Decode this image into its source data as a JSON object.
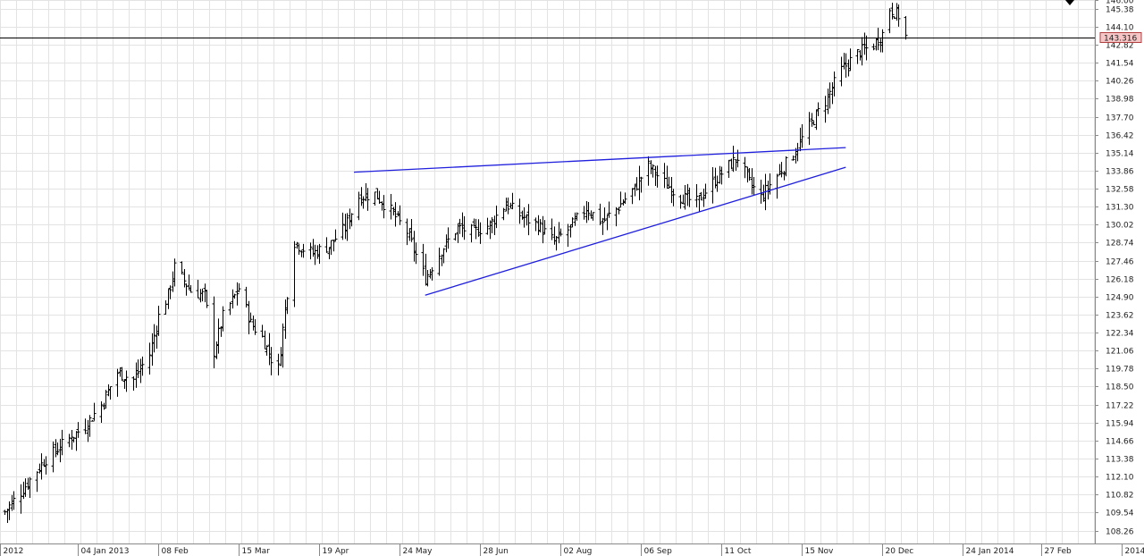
{
  "chart_data": {
    "type": "ohlc",
    "title": "",
    "xlabel": "",
    "ylabel": "",
    "grid": true,
    "ylim": [
      107.34,
      146.0
    ],
    "colors": {
      "bars": "#000000",
      "trendlines": "#1f1fdd",
      "grid": "#e3e3e3",
      "current_price_line": "#000000",
      "current_price_badge": "#f6c6c6"
    },
    "y_ticks": [
      "146.00",
      "145.38",
      "144.10",
      "142.82",
      "141.54",
      "140.26",
      "138.98",
      "137.70",
      "136.42",
      "135.14",
      "133.86",
      "132.58",
      "131.30",
      "130.02",
      "128.74",
      "127.46",
      "126.18",
      "124.90",
      "123.62",
      "122.34",
      "121.06",
      "119.78",
      "118.50",
      "117.22",
      "115.94",
      "114.66",
      "113.38",
      "112.10",
      "110.82",
      "109.54",
      "108.26"
    ],
    "x_ticks": [
      {
        "label": "2012",
        "date": "2012-12-01"
      },
      {
        "label": "04 Jan 2013",
        "date": "2013-01-04"
      },
      {
        "label": "08 Feb",
        "date": "2013-02-08"
      },
      {
        "label": "15 Mar",
        "date": "2013-03-15"
      },
      {
        "label": "19 Apr",
        "date": "2013-04-19"
      },
      {
        "label": "24 May",
        "date": "2013-05-24"
      },
      {
        "label": "28 Jun",
        "date": "2013-06-28"
      },
      {
        "label": "02 Aug",
        "date": "2013-08-02"
      },
      {
        "label": "06 Sep",
        "date": "2013-09-06"
      },
      {
        "label": "11 Oct",
        "date": "2013-10-11"
      },
      {
        "label": "15 Nov",
        "date": "2013-11-15"
      },
      {
        "label": "20 Dec",
        "date": "2013-12-20"
      },
      {
        "label": "24 Jan 2014",
        "date": "2014-01-24"
      },
      {
        "label": "27 Feb",
        "date": "2014-02-27"
      },
      {
        "label": "2014",
        "date": "2014-04-03"
      }
    ],
    "last_price": "143.316",
    "last_price_value": 143.316,
    "trendlines": [
      {
        "name": "upper",
        "start": {
          "date": "2013-05-04",
          "price": 133.75
        },
        "end": {
          "date": "2013-12-04",
          "price": 135.5
        }
      },
      {
        "name": "lower",
        "start": {
          "date": "2013-06-04",
          "price": 125.0
        },
        "end": {
          "date": "2013-12-04",
          "price": 134.1
        }
      }
    ],
    "anchors": [
      {
        "date": "2012-12-03",
        "price": 109.6
      },
      {
        "date": "2012-12-10",
        "price": 111.0
      },
      {
        "date": "2012-12-20",
        "price": 113.2
      },
      {
        "date": "2012-12-31",
        "price": 114.8
      },
      {
        "date": "2013-01-07",
        "price": 115.7
      },
      {
        "date": "2013-01-14",
        "price": 117.2
      },
      {
        "date": "2013-01-21",
        "price": 119.5
      },
      {
        "date": "2013-01-28",
        "price": 119.0
      },
      {
        "date": "2013-02-04",
        "price": 120.8
      },
      {
        "date": "2013-02-08",
        "price": 123.5
      },
      {
        "date": "2013-02-12",
        "price": 125.0
      },
      {
        "date": "2013-02-15",
        "price": 127.0
      },
      {
        "date": "2013-02-22",
        "price": 125.3
      },
      {
        "date": "2013-02-28",
        "price": 125.0
      },
      {
        "date": "2013-03-04",
        "price": 121.0
      },
      {
        "date": "2013-03-08",
        "price": 123.5
      },
      {
        "date": "2013-03-15",
        "price": 125.5
      },
      {
        "date": "2013-03-20",
        "price": 123.0
      },
      {
        "date": "2013-03-25",
        "price": 122.0
      },
      {
        "date": "2013-03-29",
        "price": 120.5
      },
      {
        "date": "2013-04-01",
        "price": 119.8
      },
      {
        "date": "2013-04-04",
        "price": 124.0
      },
      {
        "date": "2013-04-08",
        "price": 128.8
      },
      {
        "date": "2013-04-12",
        "price": 128.3
      },
      {
        "date": "2013-04-16",
        "price": 128.0
      },
      {
        "date": "2013-04-23",
        "price": 128.5
      },
      {
        "date": "2013-04-30",
        "price": 129.8
      },
      {
        "date": "2013-05-06",
        "price": 132.0
      },
      {
        "date": "2013-05-13",
        "price": 132.2
      },
      {
        "date": "2013-05-20",
        "price": 131.0
      },
      {
        "date": "2013-05-27",
        "price": 129.5
      },
      {
        "date": "2013-06-04",
        "price": 126.2
      },
      {
        "date": "2013-06-11",
        "price": 128.2
      },
      {
        "date": "2013-06-18",
        "price": 129.8
      },
      {
        "date": "2013-06-25",
        "price": 129.5
      },
      {
        "date": "2013-07-02",
        "price": 130.0
      },
      {
        "date": "2013-07-09",
        "price": 131.5
      },
      {
        "date": "2013-07-16",
        "price": 130.6
      },
      {
        "date": "2013-07-23",
        "price": 130.0
      },
      {
        "date": "2013-07-30",
        "price": 128.8
      },
      {
        "date": "2013-08-06",
        "price": 129.8
      },
      {
        "date": "2013-08-13",
        "price": 131.2
      },
      {
        "date": "2013-08-20",
        "price": 130.2
      },
      {
        "date": "2013-08-27",
        "price": 131.3
      },
      {
        "date": "2013-09-03",
        "price": 132.6
      },
      {
        "date": "2013-09-09",
        "price": 134.2
      },
      {
        "date": "2013-09-16",
        "price": 133.0
      },
      {
        "date": "2013-09-23",
        "price": 132.0
      },
      {
        "date": "2013-09-30",
        "price": 131.6
      },
      {
        "date": "2013-10-07",
        "price": 133.0
      },
      {
        "date": "2013-10-14",
        "price": 134.2
      },
      {
        "date": "2013-10-18",
        "price": 134.8
      },
      {
        "date": "2013-10-23",
        "price": 133.0
      },
      {
        "date": "2013-10-28",
        "price": 132.0
      },
      {
        "date": "2013-11-04",
        "price": 133.5
      },
      {
        "date": "2013-11-11",
        "price": 135.0
      },
      {
        "date": "2013-11-18",
        "price": 137.0
      },
      {
        "date": "2013-11-25",
        "price": 138.8
      },
      {
        "date": "2013-12-02",
        "price": 141.0
      },
      {
        "date": "2013-12-09",
        "price": 142.2
      },
      {
        "date": "2013-12-16",
        "price": 142.8
      },
      {
        "date": "2013-12-20",
        "price": 143.6
      },
      {
        "date": "2013-12-23",
        "price": 145.4
      },
      {
        "date": "2013-12-27",
        "price": 144.9
      },
      {
        "date": "2013-12-30",
        "price": 143.4
      }
    ]
  }
}
